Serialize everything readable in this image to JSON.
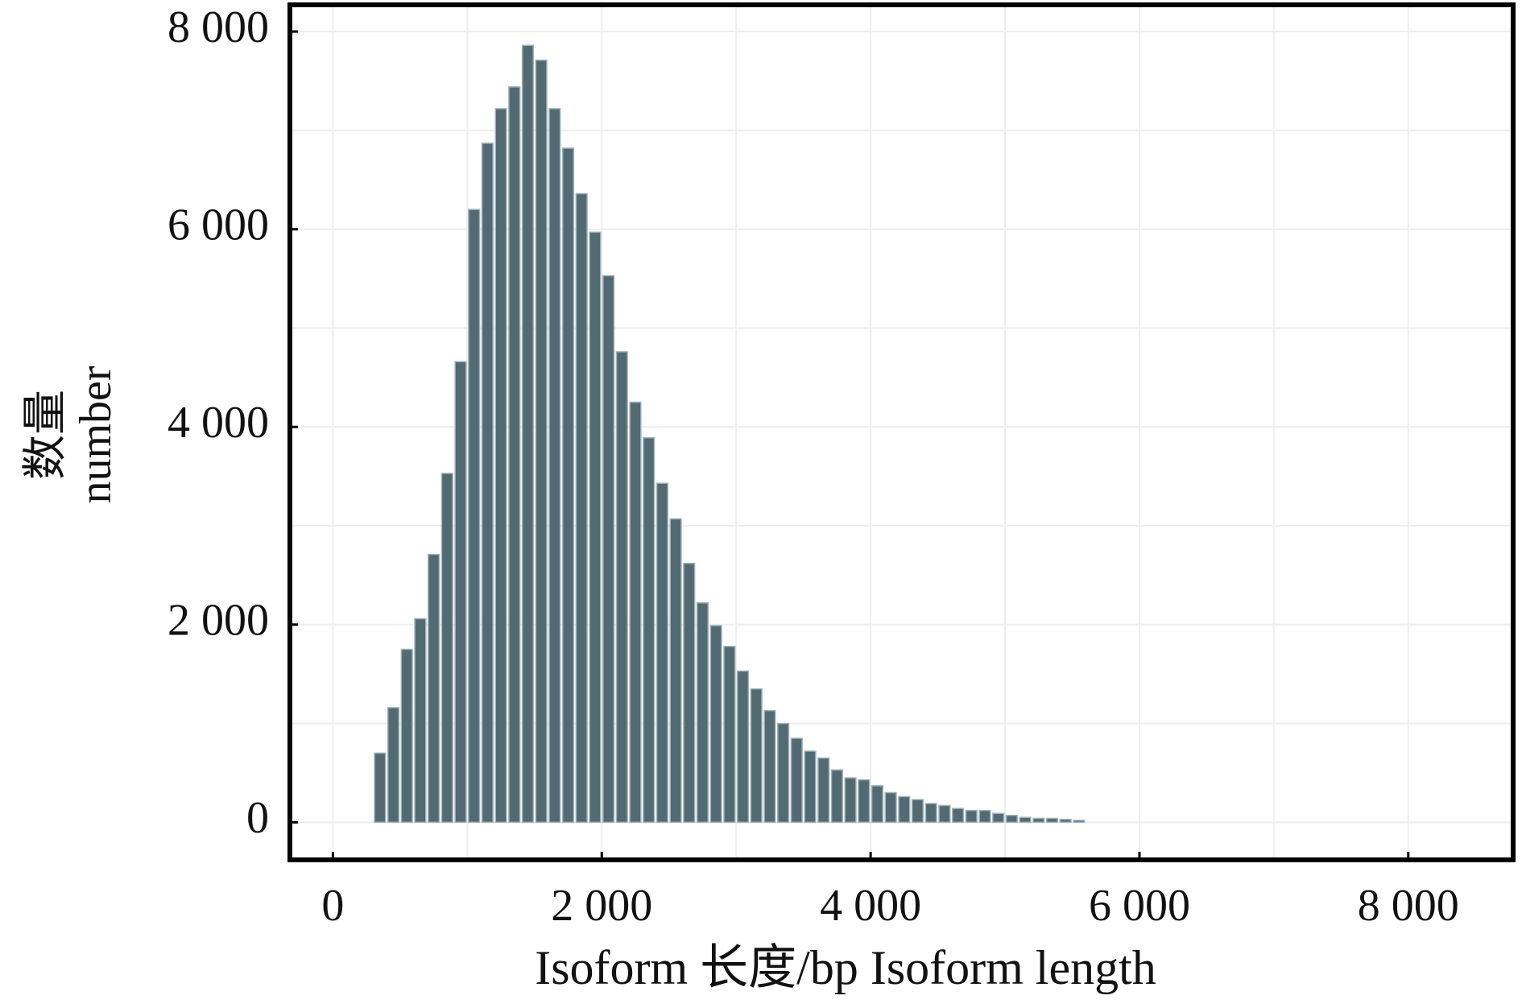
{
  "chart_data": {
    "type": "histogram",
    "xlabel": "Isoform 长度/bp Isoform length",
    "ylabel": [
      "数量",
      "number"
    ],
    "bins": [
      300,
      400,
      500,
      600,
      700,
      800,
      900,
      1000,
      1100,
      1200,
      1300,
      1400,
      1500,
      1600,
      1700,
      1800,
      1900,
      2000,
      2100,
      2200,
      2300,
      2400,
      2500,
      2600,
      2700,
      2800,
      2900,
      3000,
      3100,
      3200,
      3300,
      3400,
      3500,
      3600,
      3700,
      3800,
      3900,
      4000,
      4100,
      4200,
      4300,
      4400,
      4500,
      4600,
      4700,
      4800,
      4900,
      5000,
      5100,
      5200,
      5300,
      5400,
      5500,
      5600
    ],
    "values": [
      700,
      1160,
      1750,
      2060,
      2710,
      3530,
      4660,
      6200,
      6870,
      7220,
      7440,
      7860,
      7710,
      7220,
      6820,
      6360,
      5970,
      5530,
      4760,
      4250,
      3890,
      3430,
      3070,
      2620,
      2220,
      1990,
      1780,
      1530,
      1350,
      1130,
      1000,
      850,
      720,
      650,
      530,
      450,
      430,
      370,
      300,
      260,
      230,
      190,
      170,
      140,
      120,
      120,
      90,
      70,
      50,
      40,
      40,
      30,
      20
    ],
    "color": "#546a72",
    "xlim": [
      -320,
      8780
    ],
    "ylim": [
      -380,
      8270
    ],
    "xticks": [
      0,
      {
        "value": 2000,
        "label": "2 000"
      },
      {
        "value": 4000,
        "label": "4 000"
      },
      {
        "value": 6000,
        "label": "6 000"
      },
      {
        "value": 8000,
        "label": "8 000"
      }
    ],
    "yticks": [
      0,
      {
        "value": 2000,
        "label": "2 000"
      },
      {
        "value": 4000,
        "label": "4 000"
      },
      {
        "value": 6000,
        "label": "6 000"
      },
      {
        "value": 8000,
        "label": "8 000"
      }
    ],
    "x_minor_ticks": [
      1000,
      3000,
      5000,
      7000
    ],
    "y_minor_ticks": [
      1000,
      3000,
      5000,
      7000
    ],
    "grid": true
  }
}
